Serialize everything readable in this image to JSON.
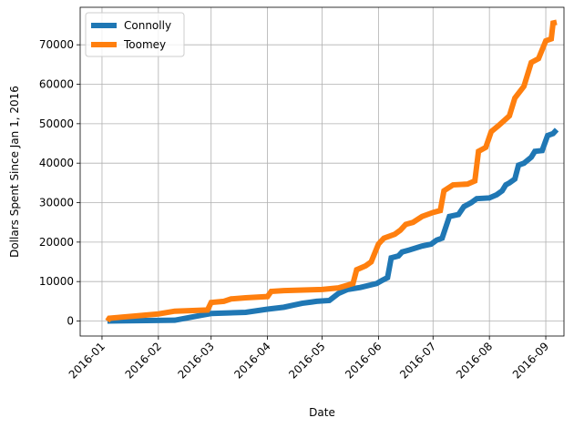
{
  "chart_data": {
    "type": "line",
    "title": "",
    "xlabel": "Date",
    "ylabel": "Dollars Spent Since Jan 1, 2016",
    "x_tick_labels": [
      "2016-01",
      "2016-02",
      "2016-03",
      "2016-04",
      "2016-05",
      "2016-06",
      "2016-07",
      "2016-08",
      "2016-09"
    ],
    "x_tick_dates": [
      "2016-01-01",
      "2016-02-01",
      "2016-03-01",
      "2016-04-01",
      "2016-05-01",
      "2016-06-01",
      "2016-07-01",
      "2016-08-01",
      "2016-09-01"
    ],
    "y_tick_labels": [
      "0",
      "10000",
      "20000",
      "30000",
      "40000",
      "50000",
      "60000",
      "70000"
    ],
    "y_ticks": [
      0,
      10000,
      20000,
      30000,
      40000,
      50000,
      60000,
      70000
    ],
    "xlim": [
      "2015-12-20",
      "2016-09-11"
    ],
    "ylim": [
      -3800,
      79500
    ],
    "grid": true,
    "legend_position": "top-left",
    "series": [
      {
        "name": "Connolly",
        "color": "#1f77b4",
        "points": [
          [
            "2016-01-04",
            0
          ],
          [
            "2016-01-20",
            100
          ],
          [
            "2016-02-10",
            200
          ],
          [
            "2016-02-17",
            800
          ],
          [
            "2016-02-25",
            1500
          ],
          [
            "2016-03-01",
            1900
          ],
          [
            "2016-03-20",
            2200
          ],
          [
            "2016-04-01",
            3000
          ],
          [
            "2016-04-10",
            3500
          ],
          [
            "2016-04-15",
            4000
          ],
          [
            "2016-04-20",
            4500
          ],
          [
            "2016-04-25",
            4800
          ],
          [
            "2016-04-28",
            5000
          ],
          [
            "2016-05-05",
            5200
          ],
          [
            "2016-05-10",
            7000
          ],
          [
            "2016-05-15",
            8000
          ],
          [
            "2016-05-22",
            8500
          ],
          [
            "2016-05-31",
            9500
          ],
          [
            "2016-06-03",
            10300
          ],
          [
            "2016-06-06",
            11000
          ],
          [
            "2016-06-08",
            16000
          ],
          [
            "2016-06-12",
            16500
          ],
          [
            "2016-06-14",
            17500
          ],
          [
            "2016-06-18",
            18000
          ],
          [
            "2016-06-25",
            19000
          ],
          [
            "2016-06-30",
            19500
          ],
          [
            "2016-07-03",
            20500
          ],
          [
            "2016-07-06",
            21000
          ],
          [
            "2016-07-10",
            26500
          ],
          [
            "2016-07-15",
            27000
          ],
          [
            "2016-07-18",
            29000
          ],
          [
            "2016-07-22",
            30000
          ],
          [
            "2016-07-25",
            31000
          ],
          [
            "2016-08-01",
            31200
          ],
          [
            "2016-08-05",
            32000
          ],
          [
            "2016-08-08",
            33000
          ],
          [
            "2016-08-10",
            34500
          ],
          [
            "2016-08-12",
            35000
          ],
          [
            "2016-08-15",
            36000
          ],
          [
            "2016-08-17",
            39500
          ],
          [
            "2016-08-20",
            40000
          ],
          [
            "2016-08-24",
            41500
          ],
          [
            "2016-08-26",
            43000
          ],
          [
            "2016-08-30",
            43200
          ],
          [
            "2016-09-02",
            47000
          ],
          [
            "2016-09-05",
            47500
          ],
          [
            "2016-09-07",
            48500
          ]
        ]
      },
      {
        "name": "Toomey",
        "color": "#ff7f0e",
        "points": [
          [
            "2016-01-04",
            0
          ],
          [
            "2016-01-05",
            700
          ],
          [
            "2016-01-12",
            1000
          ],
          [
            "2016-01-20",
            1300
          ],
          [
            "2016-02-01",
            1800
          ],
          [
            "2016-02-10",
            2500
          ],
          [
            "2016-02-28",
            2800
          ],
          [
            "2016-03-01",
            4700
          ],
          [
            "2016-03-08",
            5000
          ],
          [
            "2016-03-12",
            5600
          ],
          [
            "2016-03-20",
            5900
          ],
          [
            "2016-04-01",
            6200
          ],
          [
            "2016-04-03",
            7500
          ],
          [
            "2016-04-10",
            7700
          ],
          [
            "2016-05-01",
            8000
          ],
          [
            "2016-05-10",
            8400
          ],
          [
            "2016-05-18",
            9500
          ],
          [
            "2016-05-20",
            13000
          ],
          [
            "2016-05-25",
            14000
          ],
          [
            "2016-05-28",
            15000
          ],
          [
            "2016-06-01",
            19500
          ],
          [
            "2016-06-04",
            21000
          ],
          [
            "2016-06-10",
            22000
          ],
          [
            "2016-06-13",
            23000
          ],
          [
            "2016-06-16",
            24500
          ],
          [
            "2016-06-20",
            25000
          ],
          [
            "2016-06-25",
            26500
          ],
          [
            "2016-07-01",
            27500
          ],
          [
            "2016-07-05",
            28000
          ],
          [
            "2016-07-07",
            33000
          ],
          [
            "2016-07-12",
            34500
          ],
          [
            "2016-07-20",
            34700
          ],
          [
            "2016-07-24",
            35500
          ],
          [
            "2016-07-26",
            43000
          ],
          [
            "2016-07-30",
            44000
          ],
          [
            "2016-08-02",
            48000
          ],
          [
            "2016-08-06",
            49500
          ],
          [
            "2016-08-12",
            52000
          ],
          [
            "2016-08-15",
            56500
          ],
          [
            "2016-08-20",
            59500
          ],
          [
            "2016-08-24",
            65500
          ],
          [
            "2016-08-28",
            66500
          ],
          [
            "2016-09-01",
            71000
          ],
          [
            "2016-09-04",
            71500
          ],
          [
            "2016-09-05",
            75500
          ],
          [
            "2016-09-07",
            75700
          ]
        ]
      }
    ]
  }
}
